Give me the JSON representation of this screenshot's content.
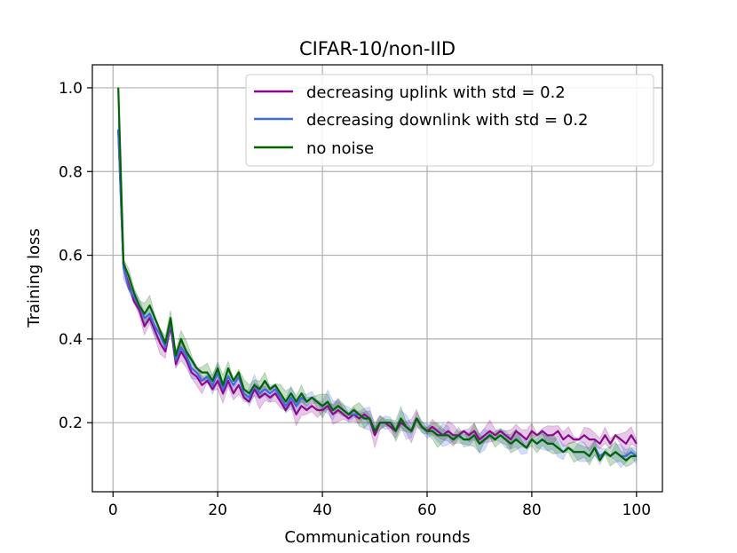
{
  "chart_data": {
    "type": "line",
    "title": "CIFAR-10/non-IID",
    "xlabel": "Communication rounds",
    "ylabel": "Training loss",
    "xlim": [
      -3.95,
      104.95
    ],
    "ylim": [
      0.035,
      1.055
    ],
    "xticks": [
      0,
      20,
      40,
      60,
      80,
      100
    ],
    "xtick_labels": [
      "0",
      "20",
      "40",
      "60",
      "80",
      "100"
    ],
    "yticks": [
      0.2,
      0.4,
      0.6,
      0.8,
      1.0
    ],
    "ytick_labels": [
      "0.2",
      "0.4",
      "0.6",
      "0.8",
      "1.0"
    ],
    "grid": true,
    "legend_position": "top-right",
    "x": [
      1,
      2,
      3,
      4,
      5,
      6,
      7,
      8,
      9,
      10,
      11,
      12,
      13,
      14,
      15,
      16,
      17,
      18,
      19,
      20,
      21,
      22,
      23,
      24,
      25,
      26,
      27,
      28,
      29,
      30,
      31,
      32,
      33,
      34,
      35,
      36,
      37,
      38,
      39,
      40,
      41,
      42,
      43,
      44,
      45,
      46,
      47,
      48,
      49,
      50,
      51,
      52,
      53,
      54,
      55,
      56,
      57,
      58,
      59,
      60,
      61,
      62,
      63,
      64,
      65,
      66,
      67,
      68,
      69,
      70,
      71,
      72,
      73,
      74,
      75,
      76,
      77,
      78,
      79,
      80,
      81,
      82,
      83,
      84,
      85,
      86,
      87,
      88,
      89,
      90,
      91,
      92,
      93,
      94,
      95,
      96,
      97,
      98,
      99,
      100
    ],
    "series": [
      {
        "name": "decreasing uplink with std = 0.2",
        "color": "#8b0a8b",
        "values": [
          0.9,
          0.57,
          0.53,
          0.49,
          0.47,
          0.43,
          0.45,
          0.42,
          0.39,
          0.37,
          0.43,
          0.34,
          0.37,
          0.35,
          0.32,
          0.31,
          0.29,
          0.3,
          0.28,
          0.3,
          0.27,
          0.3,
          0.27,
          0.29,
          0.26,
          0.25,
          0.28,
          0.26,
          0.27,
          0.26,
          0.27,
          0.25,
          0.23,
          0.25,
          0.22,
          0.24,
          0.23,
          0.24,
          0.23,
          0.23,
          0.24,
          0.22,
          0.23,
          0.22,
          0.21,
          0.22,
          0.21,
          0.22,
          0.21,
          0.17,
          0.2,
          0.2,
          0.19,
          0.18,
          0.2,
          0.19,
          0.18,
          0.21,
          0.19,
          0.18,
          0.19,
          0.18,
          0.17,
          0.18,
          0.17,
          0.17,
          0.18,
          0.17,
          0.18,
          0.16,
          0.17,
          0.18,
          0.17,
          0.18,
          0.17,
          0.16,
          0.18,
          0.17,
          0.16,
          0.18,
          0.17,
          0.18,
          0.17,
          0.17,
          0.18,
          0.16,
          0.17,
          0.16,
          0.16,
          0.17,
          0.16,
          0.16,
          0.15,
          0.17,
          0.15,
          0.17,
          0.16,
          0.15,
          0.17,
          0.15
        ]
      },
      {
        "name": "decreasing downlink with std = 0.2",
        "color": "#4169e1",
        "values": [
          0.9,
          0.57,
          0.52,
          0.5,
          0.48,
          0.45,
          0.46,
          0.43,
          0.41,
          0.38,
          0.44,
          0.35,
          0.38,
          0.36,
          0.33,
          0.32,
          0.3,
          0.31,
          0.29,
          0.32,
          0.28,
          0.31,
          0.29,
          0.31,
          0.27,
          0.26,
          0.29,
          0.27,
          0.28,
          0.27,
          0.28,
          0.26,
          0.24,
          0.26,
          0.24,
          0.26,
          0.25,
          0.26,
          0.25,
          0.24,
          0.25,
          0.23,
          0.24,
          0.23,
          0.22,
          0.22,
          0.22,
          0.21,
          0.21,
          0.18,
          0.2,
          0.2,
          0.2,
          0.18,
          0.21,
          0.19,
          0.18,
          0.21,
          0.19,
          0.18,
          0.18,
          0.17,
          0.17,
          0.17,
          0.16,
          0.17,
          0.16,
          0.16,
          0.17,
          0.15,
          0.16,
          0.17,
          0.16,
          0.17,
          0.16,
          0.15,
          0.16,
          0.15,
          0.14,
          0.16,
          0.15,
          0.16,
          0.15,
          0.15,
          0.14,
          0.13,
          0.14,
          0.13,
          0.13,
          0.13,
          0.12,
          0.14,
          0.12,
          0.13,
          0.12,
          0.13,
          0.12,
          0.12,
          0.13,
          0.12
        ]
      },
      {
        "name": "no noise",
        "color": "#006400",
        "values": [
          1.0,
          0.58,
          0.55,
          0.51,
          0.48,
          0.46,
          0.48,
          0.45,
          0.42,
          0.39,
          0.45,
          0.36,
          0.4,
          0.37,
          0.35,
          0.33,
          0.32,
          0.32,
          0.3,
          0.33,
          0.29,
          0.33,
          0.3,
          0.32,
          0.28,
          0.27,
          0.29,
          0.28,
          0.3,
          0.28,
          0.29,
          0.27,
          0.25,
          0.27,
          0.25,
          0.27,
          0.25,
          0.26,
          0.25,
          0.24,
          0.25,
          0.23,
          0.24,
          0.23,
          0.22,
          0.23,
          0.22,
          0.21,
          0.21,
          0.18,
          0.2,
          0.2,
          0.2,
          0.18,
          0.21,
          0.19,
          0.18,
          0.21,
          0.19,
          0.18,
          0.18,
          0.17,
          0.17,
          0.17,
          0.16,
          0.17,
          0.16,
          0.16,
          0.17,
          0.15,
          0.16,
          0.17,
          0.16,
          0.17,
          0.16,
          0.15,
          0.16,
          0.15,
          0.14,
          0.16,
          0.15,
          0.16,
          0.15,
          0.15,
          0.14,
          0.13,
          0.14,
          0.13,
          0.13,
          0.13,
          0.12,
          0.14,
          0.11,
          0.13,
          0.12,
          0.13,
          0.12,
          0.11,
          0.12,
          0.12
        ]
      }
    ]
  }
}
